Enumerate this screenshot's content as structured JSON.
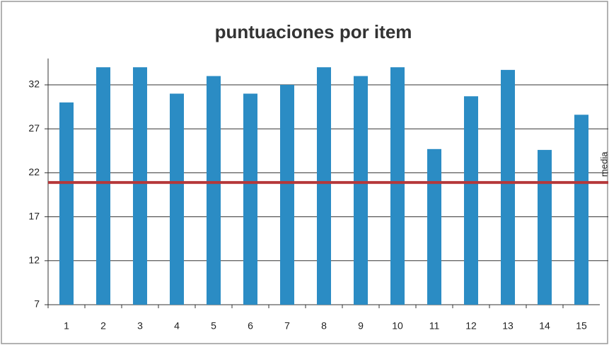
{
  "chart_data": {
    "type": "bar",
    "title": "puntuaciones por item",
    "categories": [
      "1",
      "2",
      "3",
      "4",
      "5",
      "6",
      "7",
      "8",
      "9",
      "10",
      "11",
      "12",
      "13",
      "14",
      "15"
    ],
    "values": [
      30,
      34,
      34,
      31,
      33,
      31,
      32,
      34,
      33,
      34,
      24.7,
      30.7,
      33.7,
      24.6,
      28.6
    ],
    "color": "#2b8cc4",
    "reference_line": {
      "name": "media",
      "value": 20.9,
      "color": "#b5383a"
    },
    "ylim": [
      7,
      35
    ],
    "yticks": [
      7,
      12,
      17,
      22,
      27,
      32
    ],
    "grid": true
  }
}
